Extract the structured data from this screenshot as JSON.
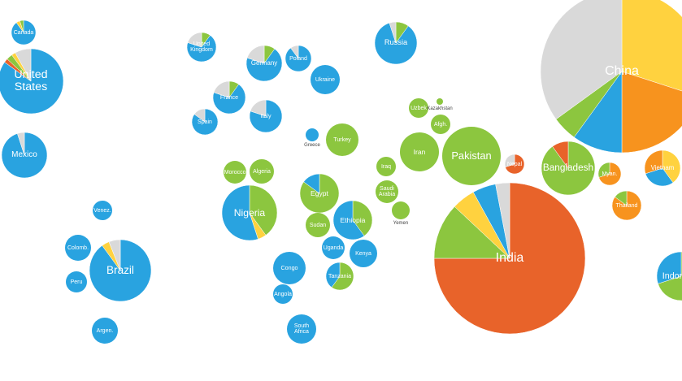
{
  "countries": [
    {
      "label": "China",
      "values": [
        30,
        20,
        10,
        5,
        35
      ],
      "colors": [
        "#ffd23f",
        "#f7931e",
        "#29a3e0",
        "#8cc63f",
        "#d9d9d9"
      ]
    },
    {
      "label": "India",
      "values": [
        75,
        12,
        5,
        5,
        3
      ],
      "colors": [
        "#e8632a",
        "#8cc63f",
        "#ffd23f",
        "#29a3e0",
        "#d9d9d9"
      ]
    },
    {
      "label": "United States",
      "values": [
        85,
        2,
        3,
        2,
        8
      ],
      "colors": [
        "#29a3e0",
        "#e8632a",
        "#8cc63f",
        "#ffd23f",
        "#d9d9d9"
      ]
    },
    {
      "label": "Brazil",
      "values": [
        90,
        4,
        6
      ],
      "colors": [
        "#29a3e0",
        "#ffd23f",
        "#d9d9d9"
      ]
    },
    {
      "label": "Nigeria",
      "values": [
        40,
        5,
        55
      ],
      "colors": [
        "#8cc63f",
        "#ffd23f",
        "#29a3e0"
      ]
    },
    {
      "label": "Pakistan",
      "values": [
        100
      ],
      "colors": [
        "#8cc63f"
      ]
    },
    {
      "label": "Russia",
      "values": [
        10,
        85,
        5
      ],
      "colors": [
        "#8cc63f",
        "#29a3e0",
        "#d9d9d9"
      ]
    },
    {
      "label": "Bangladesh",
      "values": [
        90,
        10
      ],
      "colors": [
        "#8cc63f",
        "#e8632a"
      ]
    },
    {
      "label": "Indonesia",
      "values": [
        70,
        30
      ],
      "colors": [
        "#8cc63f",
        "#29a3e0"
      ]
    },
    {
      "label": "Mexico",
      "values": [
        95,
        5
      ],
      "colors": [
        "#29a3e0",
        "#d9d9d9"
      ]
    },
    {
      "label": "Egypt",
      "values": [
        85,
        15
      ],
      "colors": [
        "#8cc63f",
        "#29a3e0"
      ]
    },
    {
      "label": "Ethiopia",
      "values": [
        40,
        60
      ],
      "colors": [
        "#8cc63f",
        "#29a3e0"
      ]
    },
    {
      "label": "Iran",
      "values": [
        100
      ],
      "colors": [
        "#8cc63f"
      ]
    },
    {
      "label": "Turkey",
      "values": [
        100
      ],
      "colors": [
        "#8cc63f"
      ]
    },
    {
      "label": "Germany",
      "values": [
        10,
        70,
        20
      ],
      "colors": [
        "#8cc63f",
        "#29a3e0",
        "#d9d9d9"
      ]
    },
    {
      "label": "United Kingdom",
      "values": [
        10,
        70,
        20
      ],
      "colors": [
        "#8cc63f",
        "#29a3e0",
        "#d9d9d9"
      ]
    },
    {
      "label": "France",
      "values": [
        10,
        70,
        20
      ],
      "colors": [
        "#8cc63f",
        "#29a3e0",
        "#d9d9d9"
      ]
    },
    {
      "label": "Italy",
      "values": [
        80,
        20
      ],
      "colors": [
        "#29a3e0",
        "#d9d9d9"
      ]
    },
    {
      "label": "Spain",
      "values": [
        85,
        15
      ],
      "colors": [
        "#29a3e0",
        "#d9d9d9"
      ]
    },
    {
      "label": "Poland",
      "values": [
        90,
        10
      ],
      "colors": [
        "#29a3e0",
        "#d9d9d9"
      ]
    },
    {
      "label": "Ukraine",
      "values": [
        100
      ],
      "colors": [
        "#29a3e0"
      ]
    },
    {
      "label": "Congo",
      "values": [
        100
      ],
      "colors": [
        "#29a3e0"
      ]
    },
    {
      "label": "South Africa",
      "values": [
        100
      ],
      "colors": [
        "#29a3e0"
      ]
    },
    {
      "label": "Kenya",
      "values": [
        100
      ],
      "colors": [
        "#29a3e0"
      ]
    },
    {
      "label": "Tanzania",
      "values": [
        60,
        40
      ],
      "colors": [
        "#8cc63f",
        "#29a3e0"
      ]
    },
    {
      "label": "Sudan",
      "values": [
        100
      ],
      "colors": [
        "#8cc63f"
      ]
    },
    {
      "label": "Uganda",
      "values": [
        100
      ],
      "colors": [
        "#29a3e0"
      ]
    },
    {
      "label": "Vietnam",
      "values": [
        40,
        30,
        30
      ],
      "colors": [
        "#ffd23f",
        "#29a3e0",
        "#f7931e"
      ]
    },
    {
      "label": "Thailand",
      "values": [
        85,
        15
      ],
      "colors": [
        "#f7931e",
        "#8cc63f"
      ]
    },
    {
      "label": "Canada",
      "values": [
        90,
        5,
        5
      ],
      "colors": [
        "#29a3e0",
        "#ffd23f",
        "#8cc63f"
      ]
    },
    {
      "label": "Colomb.",
      "values": [
        100
      ],
      "colors": [
        "#29a3e0"
      ]
    },
    {
      "label": "Peru",
      "values": [
        100
      ],
      "colors": [
        "#29a3e0"
      ]
    },
    {
      "label": "Argen.",
      "values": [
        100
      ],
      "colors": [
        "#29a3e0"
      ]
    },
    {
      "label": "Venez.",
      "values": [
        100
      ],
      "colors": [
        "#29a3e0"
      ]
    },
    {
      "label": "Nepal",
      "values": [
        70,
        30
      ],
      "colors": [
        "#e8632a",
        "#d9d9d9"
      ]
    },
    {
      "label": "Myan.",
      "values": [
        70,
        30
      ],
      "colors": [
        "#f7931e",
        "#8cc63f"
      ]
    },
    {
      "label": "Uzbek",
      "values": [
        100
      ],
      "colors": [
        "#8cc63f"
      ]
    },
    {
      "label": "Afgh.",
      "values": [
        100
      ],
      "colors": [
        "#8cc63f"
      ]
    },
    {
      "label": "Algeria",
      "values": [
        100
      ],
      "colors": [
        "#8cc63f"
      ]
    },
    {
      "label": "Morocco",
      "values": [
        100
      ],
      "colors": [
        "#8cc63f"
      ]
    },
    {
      "label": "Iraq",
      "values": [
        100
      ],
      "colors": [
        "#8cc63f"
      ]
    },
    {
      "label": "Saudi Arabia",
      "values": [
        100
      ],
      "colors": [
        "#8cc63f"
      ]
    },
    {
      "label": "Yemen",
      "values": [
        100
      ],
      "colors": [
        "#8cc63f"
      ]
    },
    {
      "label": "Angola",
      "values": [
        100
      ],
      "colors": [
        "#29a3e0"
      ]
    },
    {
      "label": "Kazakhstan",
      "values": [
        100
      ],
      "colors": [
        "#8cc63f"
      ]
    },
    {
      "label": "Greece",
      "values": [
        100
      ],
      "colors": [
        "#29a3e0"
      ]
    }
  ]
}
